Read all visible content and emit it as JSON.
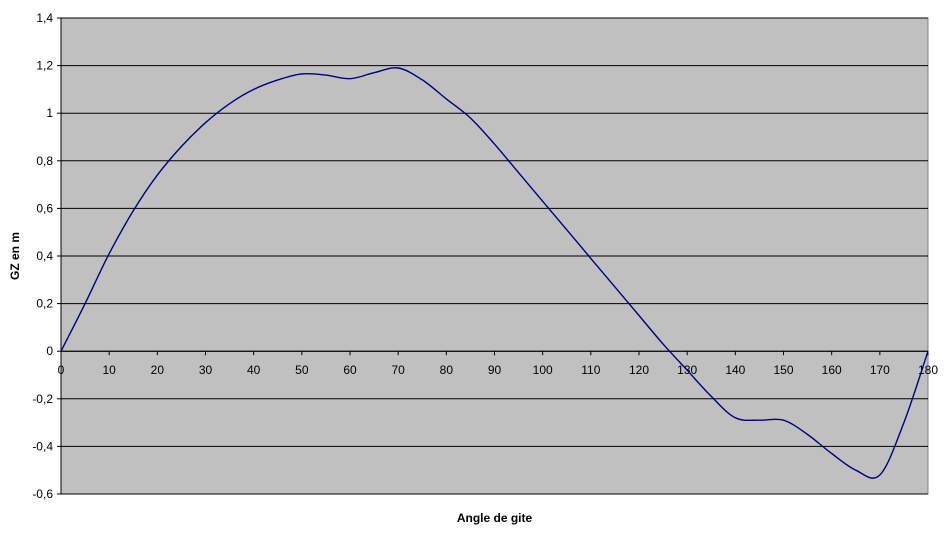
{
  "chart_data": {
    "type": "line",
    "title": "",
    "xlabel": "Angle de gite",
    "ylabel": "GZ en m",
    "xlim": [
      0,
      180
    ],
    "ylim": [
      -0.6,
      1.4
    ],
    "x_ticks": [
      0,
      10,
      20,
      30,
      40,
      50,
      60,
      70,
      80,
      90,
      100,
      110,
      120,
      130,
      140,
      150,
      160,
      170,
      180
    ],
    "x_tick_labels": [
      "0",
      "10",
      "20",
      "30",
      "40",
      "50",
      "60",
      "70",
      "80",
      "90",
      "100",
      "110",
      "120",
      "130",
      "140",
      "150",
      "160",
      "170",
      "180"
    ],
    "y_ticks": [
      -0.6,
      -0.4,
      -0.2,
      0,
      0.2,
      0.4,
      0.6,
      0.8,
      1,
      1.2,
      1.4
    ],
    "y_tick_labels": [
      "-0,6",
      "-0,4",
      "-0,2",
      "0",
      "0,2",
      "0,4",
      "0,6",
      "0,8",
      "1",
      "1,2",
      "1,4"
    ],
    "grid": "horizontal",
    "legend": "none",
    "plot_background": "#c0c0c0",
    "line_color": "#000080",
    "series": [
      {
        "x": [
          0,
          5,
          10,
          15,
          20,
          25,
          30,
          35,
          40,
          45,
          50,
          55,
          60,
          65,
          70,
          75,
          80,
          85,
          90,
          95,
          100,
          105,
          110,
          115,
          120,
          125,
          130,
          135,
          140,
          145,
          150,
          155,
          160,
          165,
          170,
          175,
          180
        ],
        "values": [
          0,
          0.2,
          0.41,
          0.59,
          0.74,
          0.86,
          0.96,
          1.04,
          1.1,
          1.14,
          1.165,
          1.16,
          1.145,
          1.17,
          1.19,
          1.14,
          1.06,
          0.98,
          0.87,
          0.75,
          0.63,
          0.51,
          0.39,
          0.27,
          0.15,
          0.03,
          -0.08,
          -0.19,
          -0.28,
          -0.29,
          -0.29,
          -0.35,
          -0.43,
          -0.5,
          -0.52,
          -0.3,
          0
        ]
      }
    ]
  }
}
